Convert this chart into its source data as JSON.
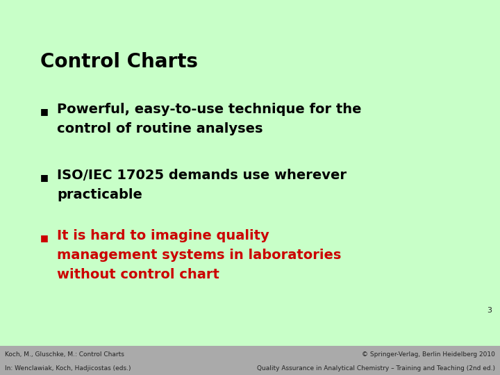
{
  "bg_color": "#c8ffc8",
  "footer_bg_color": "#aaaaaa",
  "title": "Control Charts",
  "title_color": "#000000",
  "title_fontsize": 20,
  "bullets": [
    {
      "lines": [
        "Powerful, easy-to-use technique for the",
        "control of routine analyses"
      ],
      "color": "#000000"
    },
    {
      "lines": [
        "ISO/IEC 17025 demands use wherever",
        "practicable"
      ],
      "color": "#000000"
    },
    {
      "lines": [
        "It is hard to imagine quality",
        "management systems in laboratories",
        "without control chart"
      ],
      "color": "#cc0000"
    }
  ],
  "bullet_fontsize": 14,
  "text_fontsize": 14,
  "page_number": "3",
  "footer_left1": "Koch, M., Gluschke, M.: Control Charts",
  "footer_left2": "In: Wenclawiak, Koch, Hadjicostas (eds.)",
  "footer_right1": "© Springer-Verlag, Berlin Heidelberg 2010",
  "footer_right2": "Quality Assurance in Analytical Chemistry – Training and Teaching (2nd ed.)",
  "footer_fontsize": 6.5,
  "footer_text_color": "#222222",
  "page_num_fontsize": 8
}
